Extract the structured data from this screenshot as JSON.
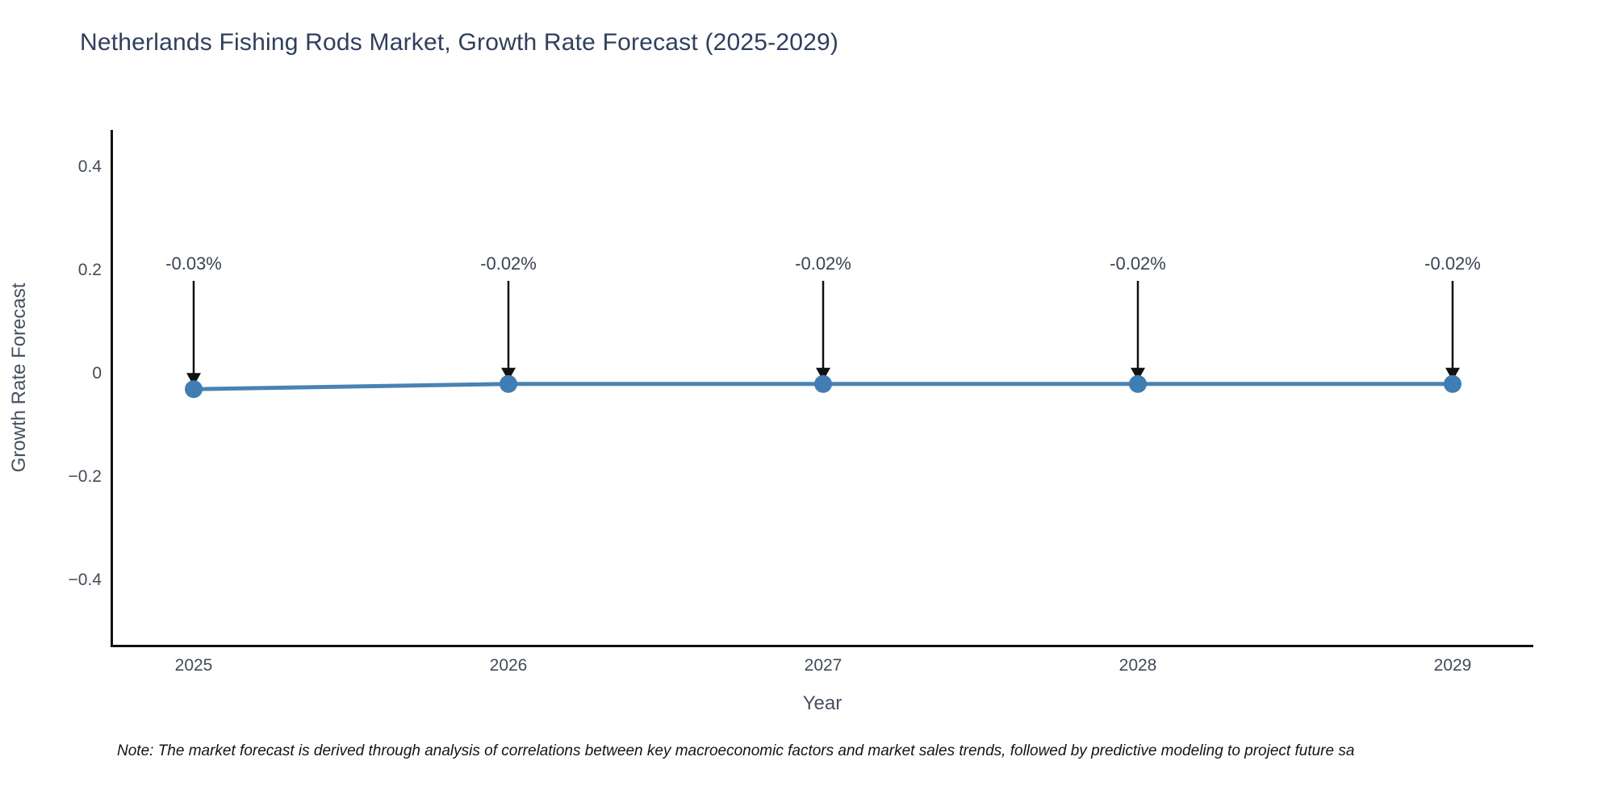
{
  "chart_data": {
    "type": "line",
    "title": "Netherlands Fishing Rods Market, Growth Rate Forecast (2025-2029)",
    "xlabel": "Year",
    "ylabel": "Growth Rate Forecast",
    "x": [
      2025,
      2026,
      2027,
      2028,
      2029
    ],
    "series": [
      {
        "name": "Growth Rate Forecast",
        "values": [
          -0.03,
          -0.02,
          -0.02,
          -0.02,
          -0.02
        ]
      }
    ],
    "point_labels": [
      "-0.03%",
      "-0.02%",
      "-0.02%",
      "-0.02%",
      "-0.02%"
    ],
    "xtick_labels": [
      "2025",
      "2026",
      "2027",
      "2028",
      "2029"
    ],
    "ytick_values": [
      0.4,
      0.2,
      0,
      -0.2,
      -0.4
    ],
    "ytick_labels": [
      "0.4",
      "0.2",
      "0",
      "−0.2",
      "−0.4"
    ],
    "ylim": [
      -0.53,
      0.48
    ],
    "grid": false,
    "legend": "none",
    "annotation_arrows": true,
    "colors": {
      "line": "#4a82b2",
      "marker": "#3f7db2",
      "arrow": "#111111",
      "title": "#2f3f5e",
      "tick": "#424b5a",
      "axis_title": "#475063",
      "annotation": "#3b4252",
      "axis_line": "#111111",
      "note": "#141414"
    },
    "note": "Note: The market forecast is derived through analysis of correlations between key macroeconomic factors and market sales trends, followed by predictive modeling to project future sa"
  }
}
